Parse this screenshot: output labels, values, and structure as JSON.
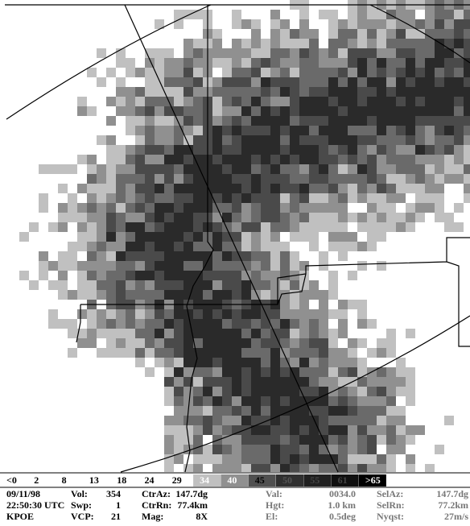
{
  "legend": {
    "labels": [
      "<0",
      "2",
      "8",
      "13",
      "18",
      "24",
      "29",
      "34",
      "40",
      "45",
      "50",
      "55",
      "61",
      ">65"
    ]
  },
  "info": {
    "header": [
      "09/11/98",
      "22:50:30 UTC",
      "KPOE"
    ],
    "columns": [
      [
        {
          "label": "Vol:",
          "value": "354"
        },
        {
          "label": "Swp:",
          "value": "1"
        },
        {
          "label": "VCP:",
          "value": "21"
        }
      ],
      [
        {
          "label": "CtrAz:",
          "value": "147.7dg"
        },
        {
          "label": "CtrRn:",
          "value": "77.4km"
        },
        {
          "label": "Mag:",
          "value": "8X"
        }
      ],
      [
        {
          "label": "Val:",
          "value": "0034.0"
        },
        {
          "label": "Hgt:",
          "value": "1.0 km"
        },
        {
          "label": "El:",
          "value": "0.5deg"
        }
      ],
      [
        {
          "label": "SelAz:",
          "value": "147.7dg"
        },
        {
          "label": "SelRn:",
          "value": "77.2km"
        },
        {
          "label": "Nyqst:",
          "value": "27m/s"
        }
      ]
    ]
  }
}
